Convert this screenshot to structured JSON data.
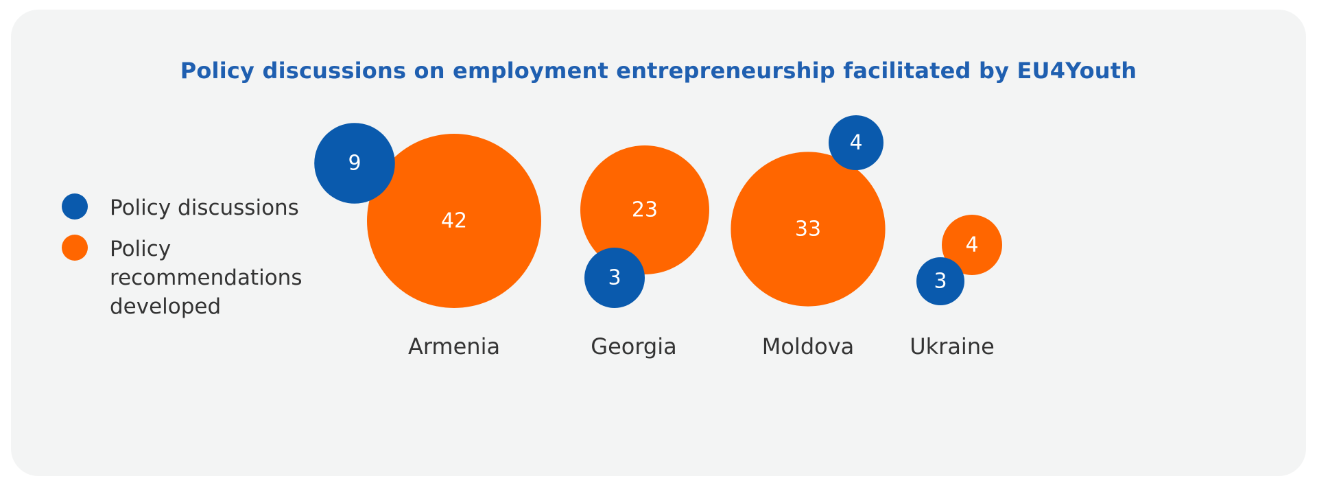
{
  "chart_data": {
    "type": "bubble",
    "title": "Policy discussions on employment entrepreneurship facilitated by EU4Youth",
    "categories": [
      "Armenia",
      "Georgia",
      "Moldova",
      "Ukraine"
    ],
    "series": [
      {
        "name": "Policy discussions",
        "color": "#0a5aad",
        "values": [
          9,
          3,
          4,
          3
        ]
      },
      {
        "name": "Policy recommendations developed",
        "color": "#ff6600",
        "values": [
          42,
          23,
          33,
          4
        ]
      }
    ],
    "legend_position": "left",
    "grid": false
  }
}
